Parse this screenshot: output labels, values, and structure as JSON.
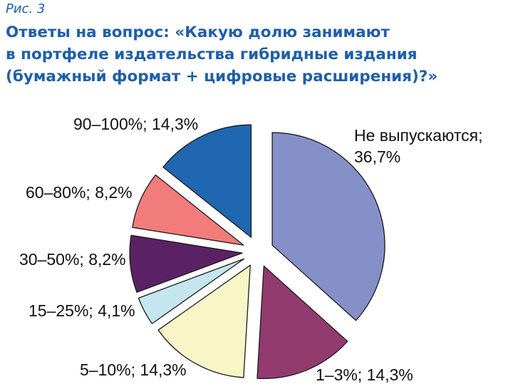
{
  "figure_label": "Рис. 3",
  "title_lines": [
    "Ответы на вопрос: «Какую долю занимают",
    "в портфеле издательства гибридные издания",
    "(бумажный формат + цифровые расширения)?»"
  ],
  "chart_data": {
    "type": "pie",
    "title": "Ответы на вопрос: «Какую долю занимают в портфеле издательства гибридные издания (бумажный формат + цифровые расширения)?»",
    "exploded": true,
    "slices": [
      {
        "name": "Не выпускаются",
        "value": 36.7,
        "label_lines": [
          "Не выпускаются;",
          "36,7%"
        ],
        "color": "#8690c8"
      },
      {
        "name": "1–3%",
        "value": 14.3,
        "label_lines": [
          "1–3%; 14,3%"
        ],
        "color": "#933a6e"
      },
      {
        "name": "5–10%",
        "value": 14.3,
        "label_lines": [
          "5–10%; 14,3%"
        ],
        "color": "#f8f6c6"
      },
      {
        "name": "15–25%",
        "value": 4.1,
        "label_lines": [
          "15–25%; 4,1%"
        ],
        "color": "#c5e6ee"
      },
      {
        "name": "30–50%",
        "value": 8.2,
        "label_lines": [
          "30–50%; 8,2%"
        ],
        "color": "#5a2264"
      },
      {
        "name": "60–80%",
        "value": 8.2,
        "label_lines": [
          "60–80%; 8,2%"
        ],
        "color": "#f27c7c"
      },
      {
        "name": "90–100%",
        "value": 14.3,
        "label_lines": [
          "90–100%; 14,3%"
        ],
        "color": "#1f67b1"
      }
    ]
  }
}
